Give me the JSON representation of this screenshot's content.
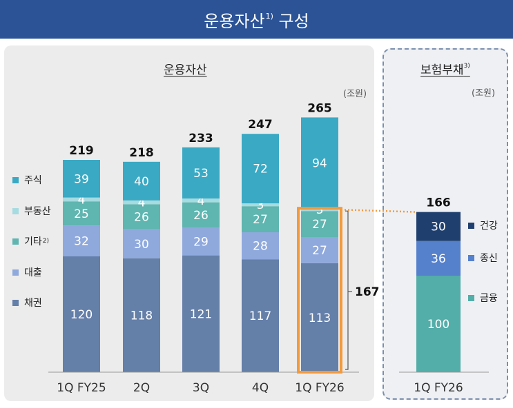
{
  "header": {
    "title": "운용자산",
    "title_sup": "1)",
    "title_suffix": " 구성"
  },
  "left_panel": {
    "title": "운용자산",
    "unit": "(조원)"
  },
  "right_panel": {
    "title": "보험부채",
    "title_sup": "3)",
    "unit": "(조원)"
  },
  "legend_left": [
    {
      "label": "주식",
      "sup": "",
      "color": "#3aa9c4"
    },
    {
      "label": "부동산",
      "sup": "",
      "color": "#a6dbe1"
    },
    {
      "label": "기타",
      "sup": "2)",
      "color": "#5fb5b0"
    },
    {
      "label": "대출",
      "sup": "",
      "color": "#8fa9dd"
    },
    {
      "label": "채권",
      "sup": "",
      "color": "#647fa8"
    }
  ],
  "legend_right": [
    {
      "label": "건강",
      "color": "#1f3f6e"
    },
    {
      "label": "종신",
      "color": "#5580cc"
    },
    {
      "label": "금융",
      "color": "#53ada9"
    }
  ],
  "chart_data": [
    {
      "type": "bar",
      "stacked": true,
      "title": "운용자산",
      "unit": "(조원)",
      "categories": [
        "1Q FY25",
        "2Q",
        "3Q",
        "4Q",
        "1Q FY26"
      ],
      "series": [
        {
          "name": "채권",
          "values": [
            120,
            118,
            121,
            117,
            113
          ],
          "color": "#647fa8"
        },
        {
          "name": "대출",
          "values": [
            32,
            30,
            29,
            28,
            27
          ],
          "color": "#8fa9dd"
        },
        {
          "name": "기타",
          "values": [
            25,
            26,
            26,
            27,
            27
          ],
          "color": "#5fb5b0"
        },
        {
          "name": "부동산",
          "values": [
            4,
            4,
            4,
            3,
            3
          ],
          "color": "#a6dbe1"
        },
        {
          "name": "주식",
          "values": [
            39,
            40,
            53,
            72,
            94
          ],
          "color": "#3aa9c4"
        }
      ],
      "totals": [
        219,
        218,
        233,
        247,
        265
      ],
      "highlight": {
        "category_index": 4,
        "series": [
          "채권",
          "대출",
          "기타"
        ],
        "total": 167,
        "color": "#f39a3c"
      }
    },
    {
      "type": "bar",
      "stacked": true,
      "title": "보험부채",
      "unit": "(조원)",
      "categories": [
        "1Q FY26"
      ],
      "series": [
        {
          "name": "금융",
          "values": [
            100
          ],
          "color": "#53ada9"
        },
        {
          "name": "종신",
          "values": [
            36
          ],
          "color": "#5580cc"
        },
        {
          "name": "건강",
          "values": [
            30
          ],
          "color": "#1f3f6e"
        }
      ],
      "totals": [
        166
      ]
    }
  ]
}
